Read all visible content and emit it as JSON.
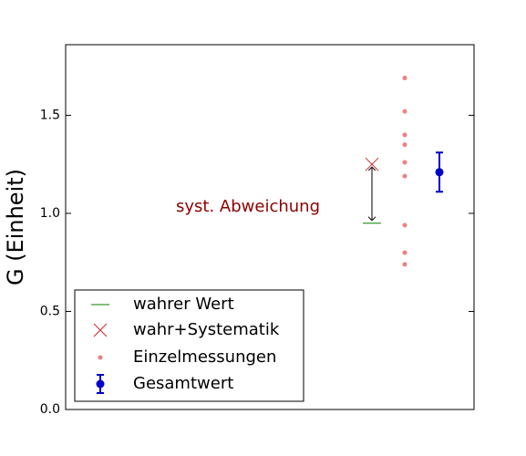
{
  "chart_data": {
    "type": "scatter",
    "ylabel": "G (Einheit)",
    "ylim": [
      0,
      1.86
    ],
    "yticks": [
      {
        "value": 0,
        "label": "0.0"
      },
      0.5,
      {
        "value": 1,
        "label": "1.0"
      },
      1.5
    ],
    "annotation": {
      "text": "syst. Abweichung",
      "color": "#8b0000"
    },
    "series": [
      {
        "name": "wahrer Wert",
        "color": "#008000",
        "marker": "line",
        "values": [
          0.95
        ]
      },
      {
        "name": "wahr+Systematik",
        "color": "#d62728",
        "marker": "x",
        "values": [
          1.25
        ]
      },
      {
        "name": "Einzelmessungen",
        "color": "#f08080",
        "marker": "dot",
        "values": [
          1.69,
          1.52,
          1.4,
          1.35,
          1.26,
          1.19,
          0.94,
          0.8,
          0.74
        ]
      },
      {
        "name": "Gesamtwert",
        "color": "#0000cc",
        "marker": "errorbar",
        "values": [
          1.21
        ],
        "errors": [
          0.1
        ]
      }
    ]
  }
}
